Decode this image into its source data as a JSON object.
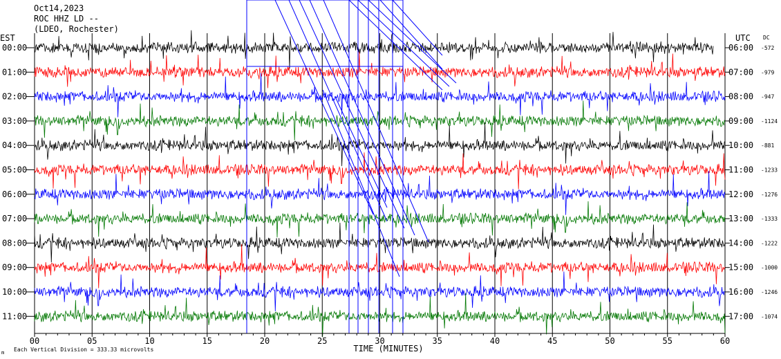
{
  "chart_data": {
    "type": "line",
    "title_lines": [
      "Oct14,2023",
      "ROC HHZ LD --",
      "(LDEO, Rochester)"
    ],
    "left_axis_label": "EST",
    "right_axis_label": "UTC",
    "dc_label": "DC",
    "xlabel": "TIME (MINUTES)",
    "xlim": [
      0,
      60
    ],
    "x_ticks": [
      "00",
      "05",
      "10",
      "15",
      "20",
      "25",
      "30",
      "35",
      "40",
      "45",
      "50",
      "55",
      "60"
    ],
    "footer": "Each Vertical Division =  333.33 microvolts",
    "footer_mark": "m",
    "row_colors": [
      "#000000",
      "#ff0000",
      "#0000ff",
      "#007700"
    ],
    "rows": [
      {
        "est": "00:00",
        "utc": "06:00",
        "dc": "-572"
      },
      {
        "est": "01:00",
        "utc": "07:00",
        "dc": "-979"
      },
      {
        "est": "02:00",
        "utc": "08:00",
        "dc": "-947"
      },
      {
        "est": "03:00",
        "utc": "09:00",
        "dc": "-1124"
      },
      {
        "est": "04:00",
        "utc": "10:00",
        "dc": "-881"
      },
      {
        "est": "05:00",
        "utc": "11:00",
        "dc": "-1233"
      },
      {
        "est": "06:00",
        "utc": "12:00",
        "dc": "-1276"
      },
      {
        "est": "07:00",
        "utc": "13:00",
        "dc": "-1333"
      },
      {
        "est": "08:00",
        "utc": "14:00",
        "dc": "-1222"
      },
      {
        "est": "09:00",
        "utc": "15:00",
        "dc": "-1000"
      },
      {
        "est": "10:00",
        "utc": "16:00",
        "dc": "-1246"
      },
      {
        "est": "11:00",
        "utc": "17:00",
        "dc": "-1074"
      }
    ],
    "grid": "vertical lines every 5 minutes",
    "note": "Each row is one hour of seismometer trace; waveform samples are not recoverable from the image and are not listed."
  }
}
